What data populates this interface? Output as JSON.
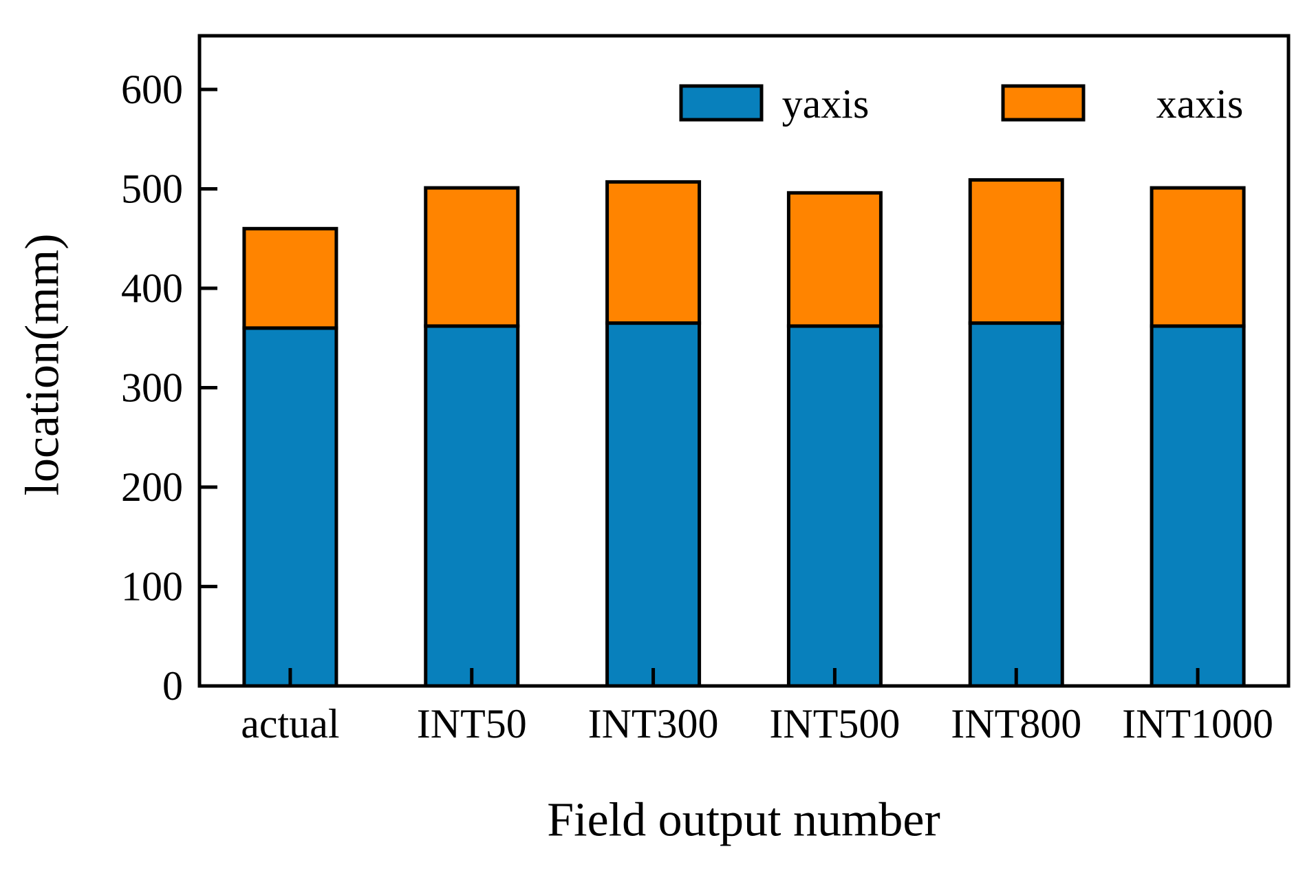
{
  "figure": {
    "background": "#ffffff"
  },
  "chart_data": {
    "type": "bar",
    "stacked": true,
    "title": "",
    "xlabel": "Field output number",
    "ylabel": "location(mm)",
    "categories": [
      "actual",
      "INT50",
      "INT300",
      "INT500",
      "INT800",
      "INT1000"
    ],
    "series": [
      {
        "name": "yaxis",
        "color": "#0880BC",
        "values": [
          360,
          362,
          365,
          362,
          365,
          362
        ]
      },
      {
        "name": "xaxis",
        "color": "#FF8400",
        "values": [
          100,
          139,
          142,
          134,
          144,
          139
        ]
      }
    ],
    "stacked_totals": [
      460,
      501,
      507,
      496,
      509,
      501
    ],
    "ylim": [
      0,
      654
    ],
    "yticks": [
      0,
      100,
      200,
      300,
      400,
      500,
      600
    ],
    "grid": false,
    "legend_position": "upper-right-inside",
    "bar_edge_color": "#000000",
    "axis_color": "#000000"
  }
}
